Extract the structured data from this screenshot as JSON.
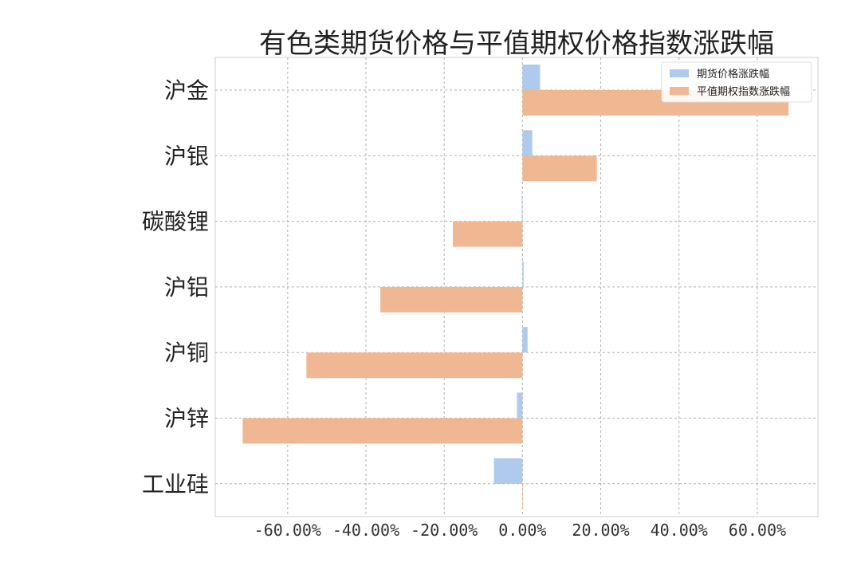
{
  "chart_data": {
    "type": "bar",
    "orientation": "horizontal",
    "title": "有色类期货价格与平值期权价格指数涨跌幅",
    "xlabel": "",
    "ylabel": "",
    "categories": [
      "沪金",
      "沪银",
      "碳酸锂",
      "沪铝",
      "沪铜",
      "沪锌",
      "工业硅"
    ],
    "series": [
      {
        "name": "期货价格涨跌幅",
        "color": "#aecbed",
        "values": [
          4.5,
          2.5,
          -0.2,
          0.3,
          1.3,
          -1.4,
          -7.3
        ]
      },
      {
        "name": "平值期权指数涨跌幅",
        "color": "#f0b892",
        "values": [
          68.0,
          19.0,
          -17.8,
          -36.3,
          -55.2,
          -71.5,
          0.0
        ]
      }
    ],
    "xlim": [
      -78.5,
      75.5
    ],
    "xticks": [
      -60,
      -40,
      -20,
      0,
      20,
      40,
      60
    ],
    "xtick_labels": [
      "-60.00%",
      "-40.00%",
      "-20.00%",
      "0.00%",
      "20.00%",
      "40.00%",
      "60.00%"
    ],
    "grid": true,
    "legend_position": "top-right"
  }
}
